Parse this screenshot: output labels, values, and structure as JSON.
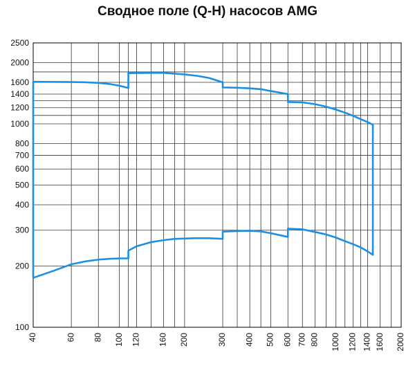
{
  "chart_data": {
    "type": "line",
    "title": "Сводное поле (Q-H) насосов AMG",
    "xscale": "log",
    "yscale": "log",
    "xlim": [
      40,
      2000
    ],
    "ylim": [
      100,
      2500
    ],
    "xticks": [
      40,
      60,
      80,
      100,
      120,
      160,
      200,
      300,
      400,
      500,
      600,
      700,
      800,
      1000,
      1200,
      1400,
      1600,
      2000
    ],
    "yticks": [
      100,
      200,
      300,
      400,
      500,
      600,
      700,
      800,
      1000,
      1200,
      1400,
      1600,
      2000,
      2500
    ],
    "x_gridlines": [
      40,
      60,
      80,
      100,
      110,
      120,
      140,
      160,
      180,
      200,
      300,
      350,
      400,
      450,
      500,
      600,
      700,
      800,
      900,
      1000,
      1100,
      1200,
      1300,
      1400,
      1600,
      1800,
      2000
    ],
    "y_gridlines": [
      100,
      200,
      300,
      400,
      500,
      600,
      700,
      800,
      1000,
      1100,
      1200,
      1300,
      1400,
      1600,
      1800,
      2000,
      2500
    ],
    "grid": true,
    "legend": "none",
    "series_color": "#1a8fe3",
    "series": [
      {
        "values": [
          [
            40,
            175
          ],
          [
            50,
            190
          ],
          [
            60,
            204
          ],
          [
            70,
            211
          ],
          [
            80,
            215
          ],
          [
            90,
            217
          ],
          [
            100,
            218
          ],
          [
            110,
            218
          ],
          [
            110,
            238
          ],
          [
            120,
            250
          ],
          [
            140,
            262
          ],
          [
            160,
            268
          ],
          [
            180,
            272
          ],
          [
            200,
            273
          ],
          [
            220,
            274
          ],
          [
            260,
            274
          ],
          [
            300,
            272
          ],
          [
            300,
            295
          ],
          [
            350,
            297
          ],
          [
            400,
            298
          ],
          [
            450,
            296
          ],
          [
            500,
            290
          ],
          [
            600,
            278
          ],
          [
            600,
            305
          ],
          [
            700,
            303
          ],
          [
            800,
            294
          ],
          [
            900,
            286
          ],
          [
            1000,
            276
          ],
          [
            1100,
            265
          ],
          [
            1200,
            256
          ],
          [
            1300,
            247
          ],
          [
            1400,
            236
          ],
          [
            1480,
            227
          ],
          [
            1480,
            990
          ],
          [
            1400,
            1020
          ],
          [
            1300,
            1055
          ],
          [
            1200,
            1095
          ],
          [
            1100,
            1135
          ],
          [
            1000,
            1175
          ],
          [
            900,
            1215
          ],
          [
            800,
            1250
          ],
          [
            700,
            1275
          ],
          [
            600,
            1280
          ],
          [
            600,
            1400
          ],
          [
            500,
            1450
          ],
          [
            450,
            1480
          ],
          [
            400,
            1495
          ],
          [
            350,
            1505
          ],
          [
            300,
            1510
          ],
          [
            300,
            1600
          ],
          [
            260,
            1680
          ],
          [
            230,
            1720
          ],
          [
            200,
            1750
          ],
          [
            160,
            1780
          ],
          [
            140,
            1780
          ],
          [
            110,
            1775
          ],
          [
            110,
            1500
          ],
          [
            100,
            1540
          ],
          [
            90,
            1570
          ],
          [
            80,
            1590
          ],
          [
            70,
            1600
          ],
          [
            60,
            1605
          ],
          [
            40,
            1610
          ],
          [
            40,
            175
          ]
        ]
      }
    ]
  }
}
